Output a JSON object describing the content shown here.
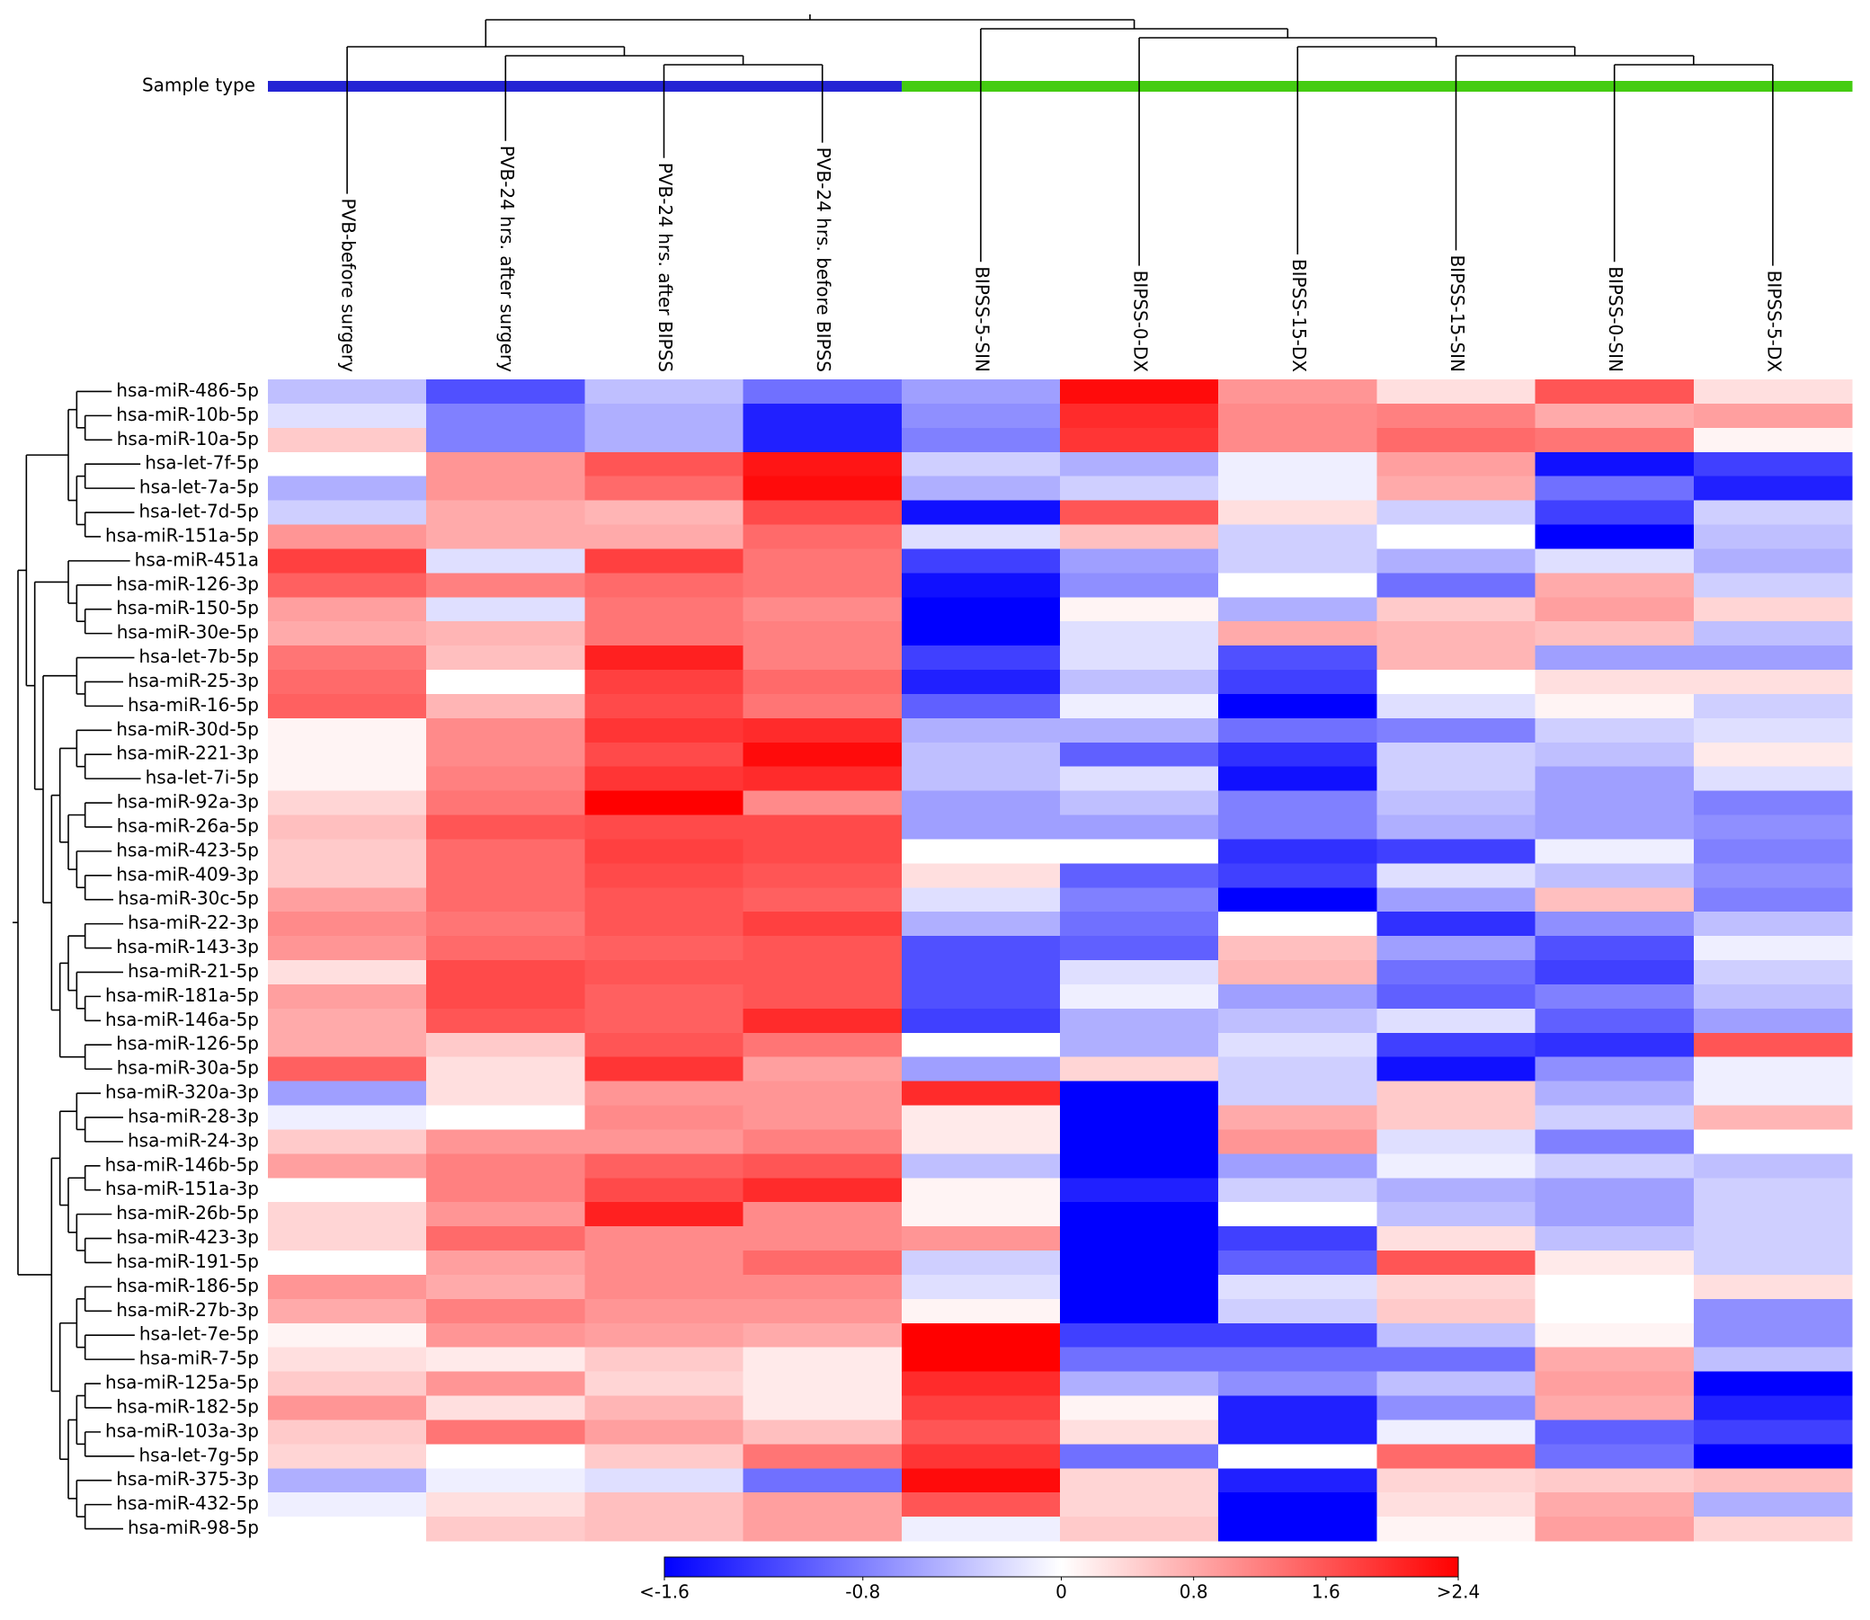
{
  "chart_data": {
    "type": "heatmap",
    "sample_type_label": "Sample type",
    "sample_type_colors": [
      "#2424d4",
      "#2424d4",
      "#2424d4",
      "#2424d4",
      "#44cc11",
      "#44cc11",
      "#44cc11",
      "#44cc11",
      "#44cc11",
      "#44cc11"
    ],
    "columns": [
      "PVB-before surgery",
      "PVB-24 hrs. after surgery",
      "PVB-24 hrs. after BIPSS",
      "PVB-24 hrs. before BIPSS",
      "BIPSS-5-SIN",
      "BIPSS-0-DX",
      "BIPSS-15-DX",
      "BIPSS-15-SIN",
      "BIPSS-0-SIN",
      "BIPSS-5-DX"
    ],
    "rows": [
      "hsa-miR-486-5p",
      "hsa-miR-10b-5p",
      "hsa-miR-10a-5p",
      "hsa-let-7f-5p",
      "hsa-let-7a-5p",
      "hsa-let-7d-5p",
      "hsa-miR-151a-5p",
      "hsa-miR-451a",
      "hsa-miR-126-3p",
      "hsa-miR-150-5p",
      "hsa-miR-30e-5p",
      "hsa-let-7b-5p",
      "hsa-miR-25-3p",
      "hsa-miR-16-5p",
      "hsa-miR-30d-5p",
      "hsa-miR-221-3p",
      "hsa-let-7i-5p",
      "hsa-miR-92a-3p",
      "hsa-miR-26a-5p",
      "hsa-miR-423-5p",
      "hsa-miR-409-3p",
      "hsa-miR-30c-5p",
      "hsa-miR-22-3p",
      "hsa-miR-143-3p",
      "hsa-miR-21-5p",
      "hsa-miR-181a-5p",
      "hsa-miR-146a-5p",
      "hsa-miR-126-5p",
      "hsa-miR-30a-5p",
      "hsa-miR-320a-3p",
      "hsa-miR-28-3p",
      "hsa-miR-24-3p",
      "hsa-miR-146b-5p",
      "hsa-miR-151a-3p",
      "hsa-miR-26b-5p",
      "hsa-miR-423-3p",
      "hsa-miR-191-5p",
      "hsa-miR-186-5p",
      "hsa-miR-27b-3p",
      "hsa-let-7e-5p",
      "hsa-miR-7-5p",
      "hsa-miR-125a-5p",
      "hsa-miR-182-5p",
      "hsa-miR-103a-3p",
      "hsa-let-7g-5p",
      "hsa-miR-375-3p",
      "hsa-miR-432-5p",
      "hsa-miR-98-5p"
    ],
    "values": [
      [
        -0.4,
        -1.1,
        -0.4,
        -0.9,
        -0.6,
        2.3,
        1.0,
        0.3,
        1.6,
        0.3
      ],
      [
        -0.2,
        -0.8,
        -0.5,
        -1.4,
        -0.7,
        2.0,
        1.1,
        1.2,
        0.8,
        0.9
      ],
      [
        0.5,
        -0.8,
        -0.5,
        -1.4,
        -0.8,
        1.9,
        1.1,
        1.4,
        1.3,
        0.1
      ],
      [
        0.0,
        1.0,
        1.6,
        2.2,
        -0.3,
        -0.5,
        -0.1,
        0.9,
        -1.5,
        -1.2
      ],
      [
        -0.5,
        1.0,
        1.4,
        2.3,
        -0.5,
        -0.3,
        -0.1,
        0.8,
        -0.9,
        -1.4
      ],
      [
        -0.3,
        0.8,
        0.7,
        1.7,
        -1.5,
        1.6,
        0.3,
        -0.3,
        -1.2,
        -0.3
      ],
      [
        1.0,
        0.8,
        0.8,
        1.4,
        -0.2,
        0.6,
        -0.3,
        0.0,
        -1.6,
        -0.4
      ],
      [
        1.8,
        -0.2,
        1.8,
        1.3,
        -1.2,
        -0.6,
        -0.3,
        -0.5,
        -0.2,
        -0.5
      ],
      [
        1.5,
        1.2,
        1.4,
        1.3,
        -1.5,
        -0.7,
        0.0,
        -0.9,
        0.8,
        -0.3
      ],
      [
        0.9,
        -0.2,
        1.3,
        1.1,
        -1.6,
        0.1,
        -0.5,
        0.5,
        0.9,
        0.4
      ],
      [
        0.8,
        0.7,
        1.3,
        1.2,
        -1.6,
        -0.2,
        0.8,
        0.7,
        0.6,
        -0.4
      ],
      [
        1.3,
        0.6,
        2.1,
        1.2,
        -1.2,
        -0.2,
        -1.1,
        0.7,
        -0.6,
        -0.6
      ],
      [
        1.4,
        0.0,
        1.8,
        1.4,
        -1.4,
        -0.4,
        -1.2,
        0.0,
        0.3,
        0.3
      ],
      [
        1.5,
        0.7,
        1.7,
        1.3,
        -1.0,
        -0.1,
        -1.6,
        -0.2,
        0.1,
        -0.3
      ],
      [
        0.1,
        1.1,
        1.9,
        2.0,
        -0.5,
        -0.5,
        -0.9,
        -0.8,
        -0.3,
        -0.2
      ],
      [
        0.1,
        1.1,
        1.7,
        2.3,
        -0.4,
        -1.0,
        -1.3,
        -0.3,
        -0.4,
        0.2
      ],
      [
        0.1,
        1.2,
        1.9,
        2.0,
        -0.4,
        -0.2,
        -1.5,
        -0.3,
        -0.6,
        -0.2
      ],
      [
        0.4,
        1.3,
        2.4,
        1.1,
        -0.6,
        -0.4,
        -0.8,
        -0.4,
        -0.6,
        -0.8
      ],
      [
        0.6,
        1.6,
        1.7,
        1.7,
        -0.6,
        -0.6,
        -0.8,
        -0.5,
        -0.6,
        -0.7
      ],
      [
        0.5,
        1.4,
        1.8,
        1.7,
        0.0,
        0.0,
        -1.3,
        -1.2,
        -0.1,
        -0.8
      ],
      [
        0.5,
        1.4,
        1.7,
        1.6,
        0.3,
        -1.0,
        -1.2,
        -0.2,
        -0.4,
        -0.7
      ],
      [
        0.9,
        1.4,
        1.6,
        1.5,
        -0.2,
        -0.8,
        -1.6,
        -0.6,
        0.6,
        -0.8
      ],
      [
        1.1,
        1.3,
        1.6,
        1.8,
        -0.5,
        -0.9,
        0.0,
        -1.3,
        -0.7,
        -0.4
      ],
      [
        1.0,
        1.4,
        1.5,
        1.6,
        -1.1,
        -1.0,
        0.6,
        -0.6,
        -1.1,
        -0.1
      ],
      [
        0.3,
        1.7,
        1.6,
        1.6,
        -1.1,
        -0.2,
        0.7,
        -0.9,
        -1.2,
        -0.3
      ],
      [
        0.9,
        1.7,
        1.5,
        1.6,
        -1.1,
        -0.1,
        -0.6,
        -1.0,
        -0.8,
        -0.4
      ],
      [
        0.8,
        1.6,
        1.5,
        2.0,
        -1.2,
        -0.5,
        -0.4,
        -0.2,
        -1.0,
        -0.6
      ],
      [
        0.8,
        0.5,
        1.6,
        1.3,
        0.0,
        -0.5,
        -0.2,
        -1.2,
        -1.3,
        1.6
      ],
      [
        1.5,
        0.3,
        1.9,
        0.9,
        -0.6,
        0.4,
        -0.3,
        -1.5,
        -0.7,
        -0.1
      ],
      [
        -0.6,
        0.3,
        1.0,
        1.0,
        2.0,
        -1.6,
        -0.3,
        0.5,
        -0.5,
        -0.1
      ],
      [
        -0.1,
        0.0,
        1.1,
        1.0,
        0.2,
        -1.6,
        0.8,
        0.5,
        -0.3,
        0.7
      ],
      [
        0.5,
        1.0,
        1.0,
        1.2,
        0.2,
        -1.6,
        1.0,
        -0.2,
        -0.8,
        0.0
      ],
      [
        0.9,
        1.2,
        1.5,
        1.6,
        -0.4,
        -1.6,
        -0.6,
        -0.1,
        -0.3,
        -0.4
      ],
      [
        0.0,
        1.2,
        1.7,
        2.0,
        0.1,
        -1.4,
        -0.3,
        -0.5,
        -0.6,
        -0.3
      ],
      [
        0.4,
        1.0,
        2.1,
        1.1,
        0.1,
        -1.6,
        0.0,
        -0.4,
        -0.6,
        -0.3
      ],
      [
        0.4,
        1.4,
        1.1,
        1.1,
        1.0,
        -1.6,
        -1.2,
        0.3,
        -0.4,
        -0.3
      ],
      [
        0.0,
        0.9,
        1.1,
        1.4,
        -0.3,
        -1.6,
        -1.0,
        1.6,
        0.2,
        -0.3
      ],
      [
        1.0,
        0.8,
        1.1,
        1.1,
        -0.2,
        -1.6,
        -0.2,
        0.4,
        0.0,
        0.3
      ],
      [
        0.8,
        1.2,
        1.0,
        1.0,
        0.1,
        -1.6,
        -0.3,
        0.5,
        0.0,
        -0.7
      ],
      [
        0.1,
        1.0,
        0.9,
        0.8,
        2.4,
        -1.2,
        -1.2,
        -0.4,
        0.1,
        -0.7
      ],
      [
        0.3,
        0.2,
        0.5,
        0.2,
        2.4,
        -0.9,
        -0.9,
        -0.9,
        0.8,
        -0.4
      ],
      [
        0.5,
        1.0,
        0.4,
        0.2,
        2.0,
        -0.5,
        -0.7,
        -0.4,
        0.9,
        -1.6
      ],
      [
        1.0,
        0.3,
        0.7,
        0.2,
        1.8,
        0.1,
        -1.4,
        -0.7,
        0.8,
        -1.4
      ],
      [
        0.5,
        1.3,
        0.9,
        0.6,
        1.6,
        0.3,
        -1.4,
        -0.1,
        -1.0,
        -1.2
      ],
      [
        0.4,
        0.0,
        0.5,
        1.3,
        1.9,
        -0.9,
        0.0,
        1.4,
        -0.9,
        -1.6
      ],
      [
        -0.5,
        -0.1,
        -0.2,
        -0.9,
        2.3,
        0.4,
        -1.4,
        0.4,
        0.5,
        0.6
      ],
      [
        -0.1,
        0.3,
        0.6,
        0.9,
        1.6,
        0.4,
        -1.6,
        0.3,
        0.8,
        -0.5
      ],
      [
        0.0,
        0.5,
        0.6,
        0.9,
        -0.1,
        0.5,
        -1.6,
        0.1,
        0.9,
        0.4
      ]
    ],
    "colorscale": {
      "min": -1.6,
      "mid": 0,
      "max": 2.4,
      "colors": [
        "#0000ff",
        "#ffffff",
        "#ff0000"
      ]
    },
    "colorbar_ticks": [
      {
        "value": -1.6,
        "label": "<-1.6"
      },
      -0.8,
      0,
      0.8,
      1.6,
      {
        "value": 2.4,
        "label": ">2.4"
      }
    ]
  }
}
